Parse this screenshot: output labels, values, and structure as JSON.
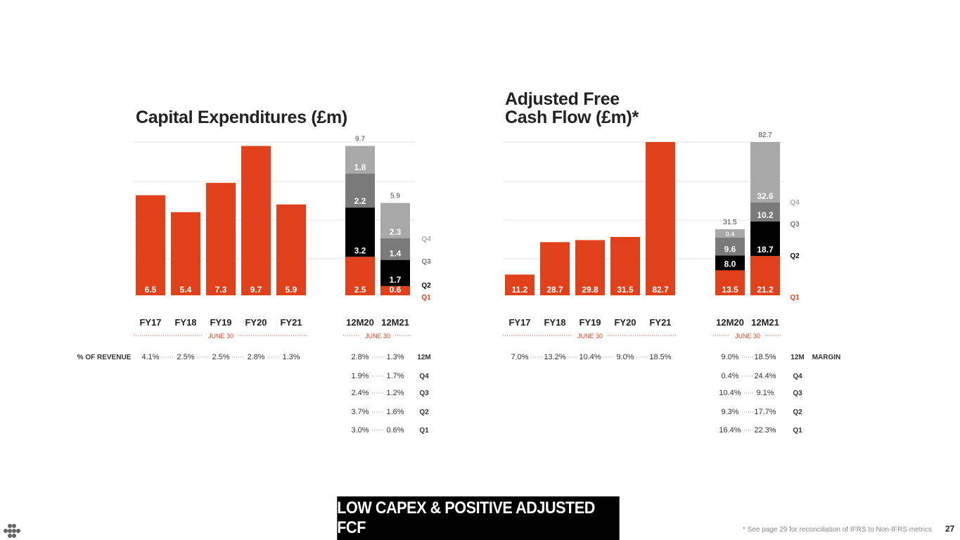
{
  "footnote": "* See page 29 for reconciliation of IFRS to Non-IFRS metrics",
  "page_number": "27",
  "banner": "LOW CAPEX & POSITIVE ADJUSTED FCF",
  "colors": {
    "q1": "#e0401a",
    "q2": "#000000",
    "q3": "#7a7a7a",
    "q4": "#a8a8a8",
    "annual": "#e0401a",
    "q1_label": "#e0401a",
    "q4_label": "#aaaaaa"
  },
  "logo": "dots-logo",
  "chart_data": [
    {
      "type": "bar",
      "title": "Capital Expenditures (£m)",
      "categories": [
        "FY17",
        "FY18",
        "FY19",
        "FY20",
        "FY21"
      ],
      "values": [
        6.5,
        5.4,
        7.3,
        9.7,
        5.9
      ],
      "group_label": "JUNE 30",
      "stacked": {
        "categories": [
          "12M20",
          "12M21"
        ],
        "totals": [
          9.7,
          5.9
        ],
        "group_label": "JUNE 30",
        "series": [
          {
            "name": "Q1",
            "values": [
              2.5,
              0.6
            ]
          },
          {
            "name": "Q2",
            "values": [
              3.2,
              1.7
            ]
          },
          {
            "name": "Q3",
            "values": [
              2.2,
              1.4
            ]
          },
          {
            "name": "Q4",
            "values": [
              1.8,
              2.3
            ]
          }
        ]
      },
      "ylim": [
        0,
        10
      ],
      "grid": true,
      "table": {
        "row_label": "% OF REVENUE",
        "annual": [
          "4.1%",
          "2.5%",
          "2.5%",
          "2.8%",
          "1.3%"
        ],
        "rows": [
          {
            "label": "12M",
            "values": [
              "2.8%",
              "1.3%"
            ]
          },
          {
            "label": "Q4",
            "values": [
              "1.9%",
              "1.7%"
            ]
          },
          {
            "label": "Q3",
            "values": [
              "2.4%",
              "1.2%"
            ]
          },
          {
            "label": "Q2",
            "values": [
              "3.7%",
              "1.6%"
            ]
          },
          {
            "label": "Q1",
            "values": [
              "3.0%",
              "0.6%"
            ]
          }
        ]
      }
    },
    {
      "type": "bar",
      "title": "Adjusted Free Cash Flow (£m)*",
      "title_lines": [
        "Adjusted Free",
        "Cash Flow (£m)*"
      ],
      "categories": [
        "FY17",
        "FY18",
        "FY19",
        "FY20",
        "FY21"
      ],
      "values": [
        11.2,
        28.7,
        29.8,
        31.5,
        82.7
      ],
      "group_label": "JUNE 30",
      "stacked": {
        "categories": [
          "12M20",
          "12M21"
        ],
        "totals": [
          31.5,
          82.7
        ],
        "group_label": "JUNE 30",
        "series": [
          {
            "name": "Q1",
            "values": [
              13.5,
              21.2
            ]
          },
          {
            "name": "Q2",
            "values": [
              8.0,
              18.7
            ]
          },
          {
            "name": "Q3",
            "values": [
              9.6,
              10.2
            ]
          },
          {
            "name": "Q4",
            "values": [
              0.4,
              32.6
            ]
          }
        ]
      },
      "ylim": [
        0,
        82.7
      ],
      "grid": true,
      "table": {
        "row_label": "MARGIN",
        "annual": [
          "7.0%",
          "13.2%",
          "10.4%",
          "9.0%",
          "18.5%"
        ],
        "rows": [
          {
            "label": "12M",
            "values": [
              "9.0%",
              "18.5%"
            ]
          },
          {
            "label": "Q4",
            "values": [
              "0.4%",
              "24.4%"
            ]
          },
          {
            "label": "Q3",
            "values": [
              "10.4%",
              "9.1%"
            ]
          },
          {
            "label": "Q2",
            "values": [
              "9.3%",
              "17.7%"
            ]
          },
          {
            "label": "Q1",
            "values": [
              "16.4%",
              "22.3%"
            ]
          }
        ]
      }
    }
  ]
}
